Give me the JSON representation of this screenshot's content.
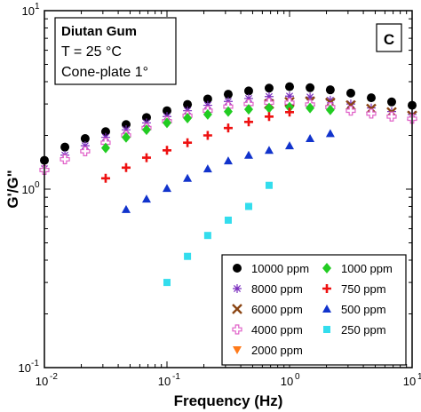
{
  "chart_data": {
    "type": "scatter",
    "xlabel": "Frequency (Hz)",
    "ylabel": "G'/G\"",
    "x_scale": "log",
    "y_scale": "log",
    "xlim": [
      0.01,
      10
    ],
    "ylim": [
      0.1,
      10
    ],
    "grid": false,
    "panel_label": "C",
    "annotations": [
      "Diutan Gum",
      "T = 25 °C",
      "Cone-plate 1°"
    ],
    "x_ticks": [
      {
        "label": "10",
        "exp": "-2",
        "value": 0.01
      },
      {
        "label": "10",
        "exp": "-1",
        "value": 0.1
      },
      {
        "label": "10",
        "exp": "0",
        "value": 1
      },
      {
        "label": "10",
        "exp": "1",
        "value": 10
      }
    ],
    "y_ticks": [
      {
        "label": "10",
        "exp": "-1",
        "value": 0.1
      },
      {
        "label": "10",
        "exp": "0",
        "value": 1
      },
      {
        "label": "10",
        "exp": "1",
        "value": 10
      }
    ],
    "legend_position": "bottom-right",
    "series": [
      {
        "name": "10000 ppm",
        "marker": "circle",
        "color": "#000000",
        "x": [
          0.01,
          0.0147,
          0.0215,
          0.0316,
          0.0464,
          0.0681,
          0.1,
          0.147,
          0.215,
          0.316,
          0.464,
          0.681,
          1.0,
          1.47,
          2.15,
          3.16,
          4.64,
          6.81,
          10.0
        ],
        "y": [
          1.45,
          1.72,
          1.92,
          2.1,
          2.3,
          2.52,
          2.75,
          2.98,
          3.2,
          3.4,
          3.55,
          3.68,
          3.75,
          3.7,
          3.6,
          3.45,
          3.25,
          3.08,
          2.95
        ]
      },
      {
        "name": "8000 ppm",
        "marker": "asterisk",
        "color": "#7b2fbe",
        "x": [
          0.01,
          0.0147,
          0.0215,
          0.0316,
          0.0464,
          0.0681,
          0.1,
          0.147,
          0.215,
          0.316,
          0.464,
          0.681,
          1.0,
          1.47,
          2.15,
          3.16,
          4.64,
          6.81,
          10.0
        ],
        "y": [
          1.3,
          1.55,
          1.75,
          1.95,
          2.15,
          2.35,
          2.55,
          2.75,
          2.95,
          3.1,
          3.22,
          3.3,
          3.32,
          3.28,
          3.15,
          3.0,
          2.85,
          2.72,
          2.62
        ]
      },
      {
        "name": "6000 ppm",
        "marker": "x",
        "color": "#8b4513",
        "x": [
          0.681,
          1.0,
          1.47,
          2.15,
          3.16,
          4.64,
          6.81,
          10.0
        ],
        "y": [
          3.0,
          3.08,
          3.1,
          3.05,
          2.95,
          2.82,
          2.7,
          2.58
        ]
      },
      {
        "name": "4000 ppm",
        "marker": "plus-open",
        "color": "#e060c8",
        "x": [
          0.01,
          0.0147,
          0.0215,
          0.0316,
          0.0464,
          0.0681,
          0.1,
          0.147,
          0.215,
          0.316,
          0.464,
          0.681,
          1.0,
          1.47,
          2.15,
          3.16,
          4.64,
          6.81,
          10.0
        ],
        "y": [
          1.28,
          1.47,
          1.63,
          1.82,
          2.0,
          2.2,
          2.4,
          2.58,
          2.75,
          2.9,
          3.0,
          3.05,
          3.05,
          2.98,
          2.88,
          2.75,
          2.65,
          2.55,
          2.48
        ]
      },
      {
        "name": "2000 ppm",
        "marker": "triangle-down",
        "color": "#ff7a1a",
        "x": [],
        "y": []
      },
      {
        "name": "1000 ppm",
        "marker": "diamond",
        "color": "#22cc22",
        "x": [
          0.0316,
          0.0464,
          0.0681,
          0.1,
          0.147,
          0.215,
          0.316,
          0.464,
          0.681,
          1.0,
          1.47,
          2.15
        ],
        "y": [
          1.7,
          1.95,
          2.15,
          2.35,
          2.5,
          2.62,
          2.72,
          2.8,
          2.85,
          2.88,
          2.85,
          2.78
        ]
      },
      {
        "name": "750 ppm",
        "marker": "plus",
        "color": "#ee1111",
        "x": [
          0.0316,
          0.0464,
          0.0681,
          0.1,
          0.147,
          0.215,
          0.316,
          0.464,
          0.681,
          1.0
        ],
        "y": [
          1.15,
          1.32,
          1.5,
          1.65,
          1.82,
          2.0,
          2.2,
          2.38,
          2.55,
          2.7
        ]
      },
      {
        "name": "500 ppm",
        "marker": "triangle-up",
        "color": "#1133cc",
        "x": [
          0.0464,
          0.0681,
          0.1,
          0.147,
          0.215,
          0.316,
          0.464,
          0.681,
          1.0,
          1.47,
          2.15
        ],
        "y": [
          0.77,
          0.88,
          1.01,
          1.15,
          1.3,
          1.44,
          1.55,
          1.65,
          1.75,
          1.92,
          2.05
        ]
      },
      {
        "name": "250 ppm",
        "marker": "square",
        "color": "#33dded",
        "x": [
          0.1,
          0.147,
          0.215,
          0.316,
          0.464,
          0.681
        ],
        "y": [
          0.3,
          0.42,
          0.55,
          0.67,
          0.8,
          1.05
        ]
      }
    ]
  }
}
